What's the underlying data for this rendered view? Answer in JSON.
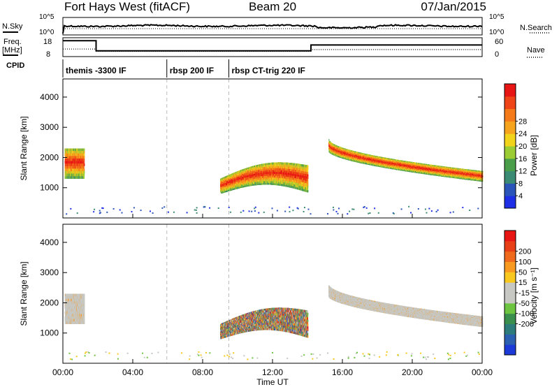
{
  "header": {
    "site": "Fort Hays West (fitACF)",
    "beam": "Beam 20",
    "date": "07/Jan/2015"
  },
  "side_labels": {
    "nsky": "N.Sky",
    "freq_top": "Freq.",
    "freq_unit": "[MHz]",
    "cpid": "CPID",
    "nsearch": "N.Search",
    "nave": "Nave",
    "power_unit": "Power [dB]",
    "velocity_unit": "Velocity [m s⁻¹]"
  },
  "chart_data": {
    "type": "heatmap",
    "xlabel": "Time UT",
    "xticks": [
      "00:00",
      "04:00",
      "08:00",
      "12:00",
      "16:00",
      "20:00",
      "00:00"
    ],
    "ylabel": "Slant Range [km]",
    "yticks": [
      "1000",
      "2000",
      "3000",
      "4000"
    ],
    "ylim": [
      0,
      4600
    ],
    "grid": false,
    "time_range_hours": [
      0,
      24
    ],
    "noise_panel": {
      "left_ticks": [
        "10^5",
        "10^0"
      ],
      "right_ticks": [
        "10^5",
        "10^0"
      ]
    },
    "freq_panel": {
      "left_ticks": [
        "18",
        "8"
      ],
      "right_ticks": [
        "60",
        "0"
      ],
      "freq_mhz": [
        {
          "t": 0,
          "v": 17
        },
        {
          "t": 1.9,
          "v": 17
        },
        {
          "t": 1.9,
          "v": 10
        },
        {
          "t": 14.2,
          "v": 10
        },
        {
          "t": 14.2,
          "v": 14
        },
        {
          "t": 24,
          "v": 14
        }
      ],
      "nave": [
        {
          "t": 0,
          "v": 26
        },
        {
          "t": 1.9,
          "v": 26
        },
        {
          "t": 1.9,
          "v": 18
        },
        {
          "t": 14.2,
          "v": 18
        },
        {
          "t": 14.2,
          "v": 24
        },
        {
          "t": 24,
          "v": 24
        }
      ]
    },
    "cpid_segments": [
      {
        "start": 0,
        "end": 5.95,
        "label": "themis -3300 IF"
      },
      {
        "start": 5.95,
        "end": 9.5,
        "label": "rbsp 200 IF"
      },
      {
        "start": 9.5,
        "end": 24,
        "label": "rbsp CT-trig 220 IF"
      }
    ],
    "power_colorbar": {
      "ticks": [
        "4",
        "8",
        "12",
        "16",
        "20",
        "24",
        "28"
      ],
      "colors": [
        "#1f2fe6",
        "#2b55b8",
        "#3b8a73",
        "#4a9e4a",
        "#9ccc33",
        "#f2d31c",
        "#f6a31e",
        "#f57a1a",
        "#ee4418",
        "#e81515"
      ]
    },
    "velocity_colorbar": {
      "ticks": [
        "200",
        "100",
        "50",
        "15",
        "-15",
        "-50",
        "-100",
        "-200"
      ],
      "colors": [
        "#1b3ad8",
        "#2b5fb0",
        "#2e7b7b",
        "#3b8f4e",
        "#6cc440",
        "#c7c7c3",
        "#c7c7c3",
        "#f8c81e",
        "#f89a20",
        "#f06a1d",
        "#e83f18",
        "#e81515"
      ]
    },
    "echo_regions": [
      {
        "t_start": 0.1,
        "t_end": 1.2,
        "range_low": 1300,
        "range_high": 2300
      },
      {
        "t_start": 9.0,
        "t_end": 14.0,
        "range_low": 700,
        "range_high": 1800
      },
      {
        "t_start": 15.2,
        "t_end": 24.0,
        "range_low": 1100,
        "range_high": 2500
      }
    ]
  }
}
